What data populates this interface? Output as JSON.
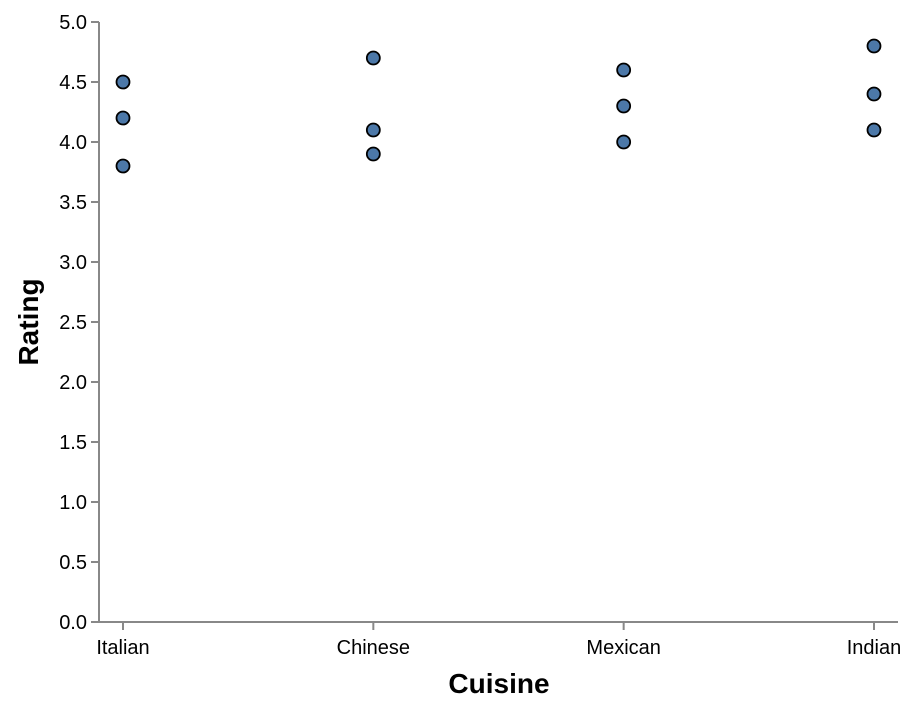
{
  "chart_data": {
    "type": "scatter",
    "categories": [
      "Italian",
      "Chinese",
      "Mexican",
      "Indian"
    ],
    "points": [
      {
        "x": "Italian",
        "y": 4.5
      },
      {
        "x": "Italian",
        "y": 4.2
      },
      {
        "x": "Italian",
        "y": 3.8
      },
      {
        "x": "Chinese",
        "y": 4.7
      },
      {
        "x": "Chinese",
        "y": 4.1
      },
      {
        "x": "Chinese",
        "y": 3.9
      },
      {
        "x": "Mexican",
        "y": 4.6
      },
      {
        "x": "Mexican",
        "y": 4.3
      },
      {
        "x": "Mexican",
        "y": 4.0
      },
      {
        "x": "Indian",
        "y": 4.8
      },
      {
        "x": "Indian",
        "y": 4.4
      },
      {
        "x": "Indian",
        "y": 4.1
      }
    ],
    "xlabel": "Cuisine",
    "ylabel": "Rating",
    "ylim": [
      0,
      5
    ],
    "yticks": [
      "0.0",
      "0.5",
      "1.0",
      "1.5",
      "2.0",
      "2.5",
      "3.0",
      "3.5",
      "4.0",
      "4.5",
      "5.0"
    ],
    "grid": false,
    "point_color": "#4c78a8",
    "point_stroke": "#000000"
  }
}
